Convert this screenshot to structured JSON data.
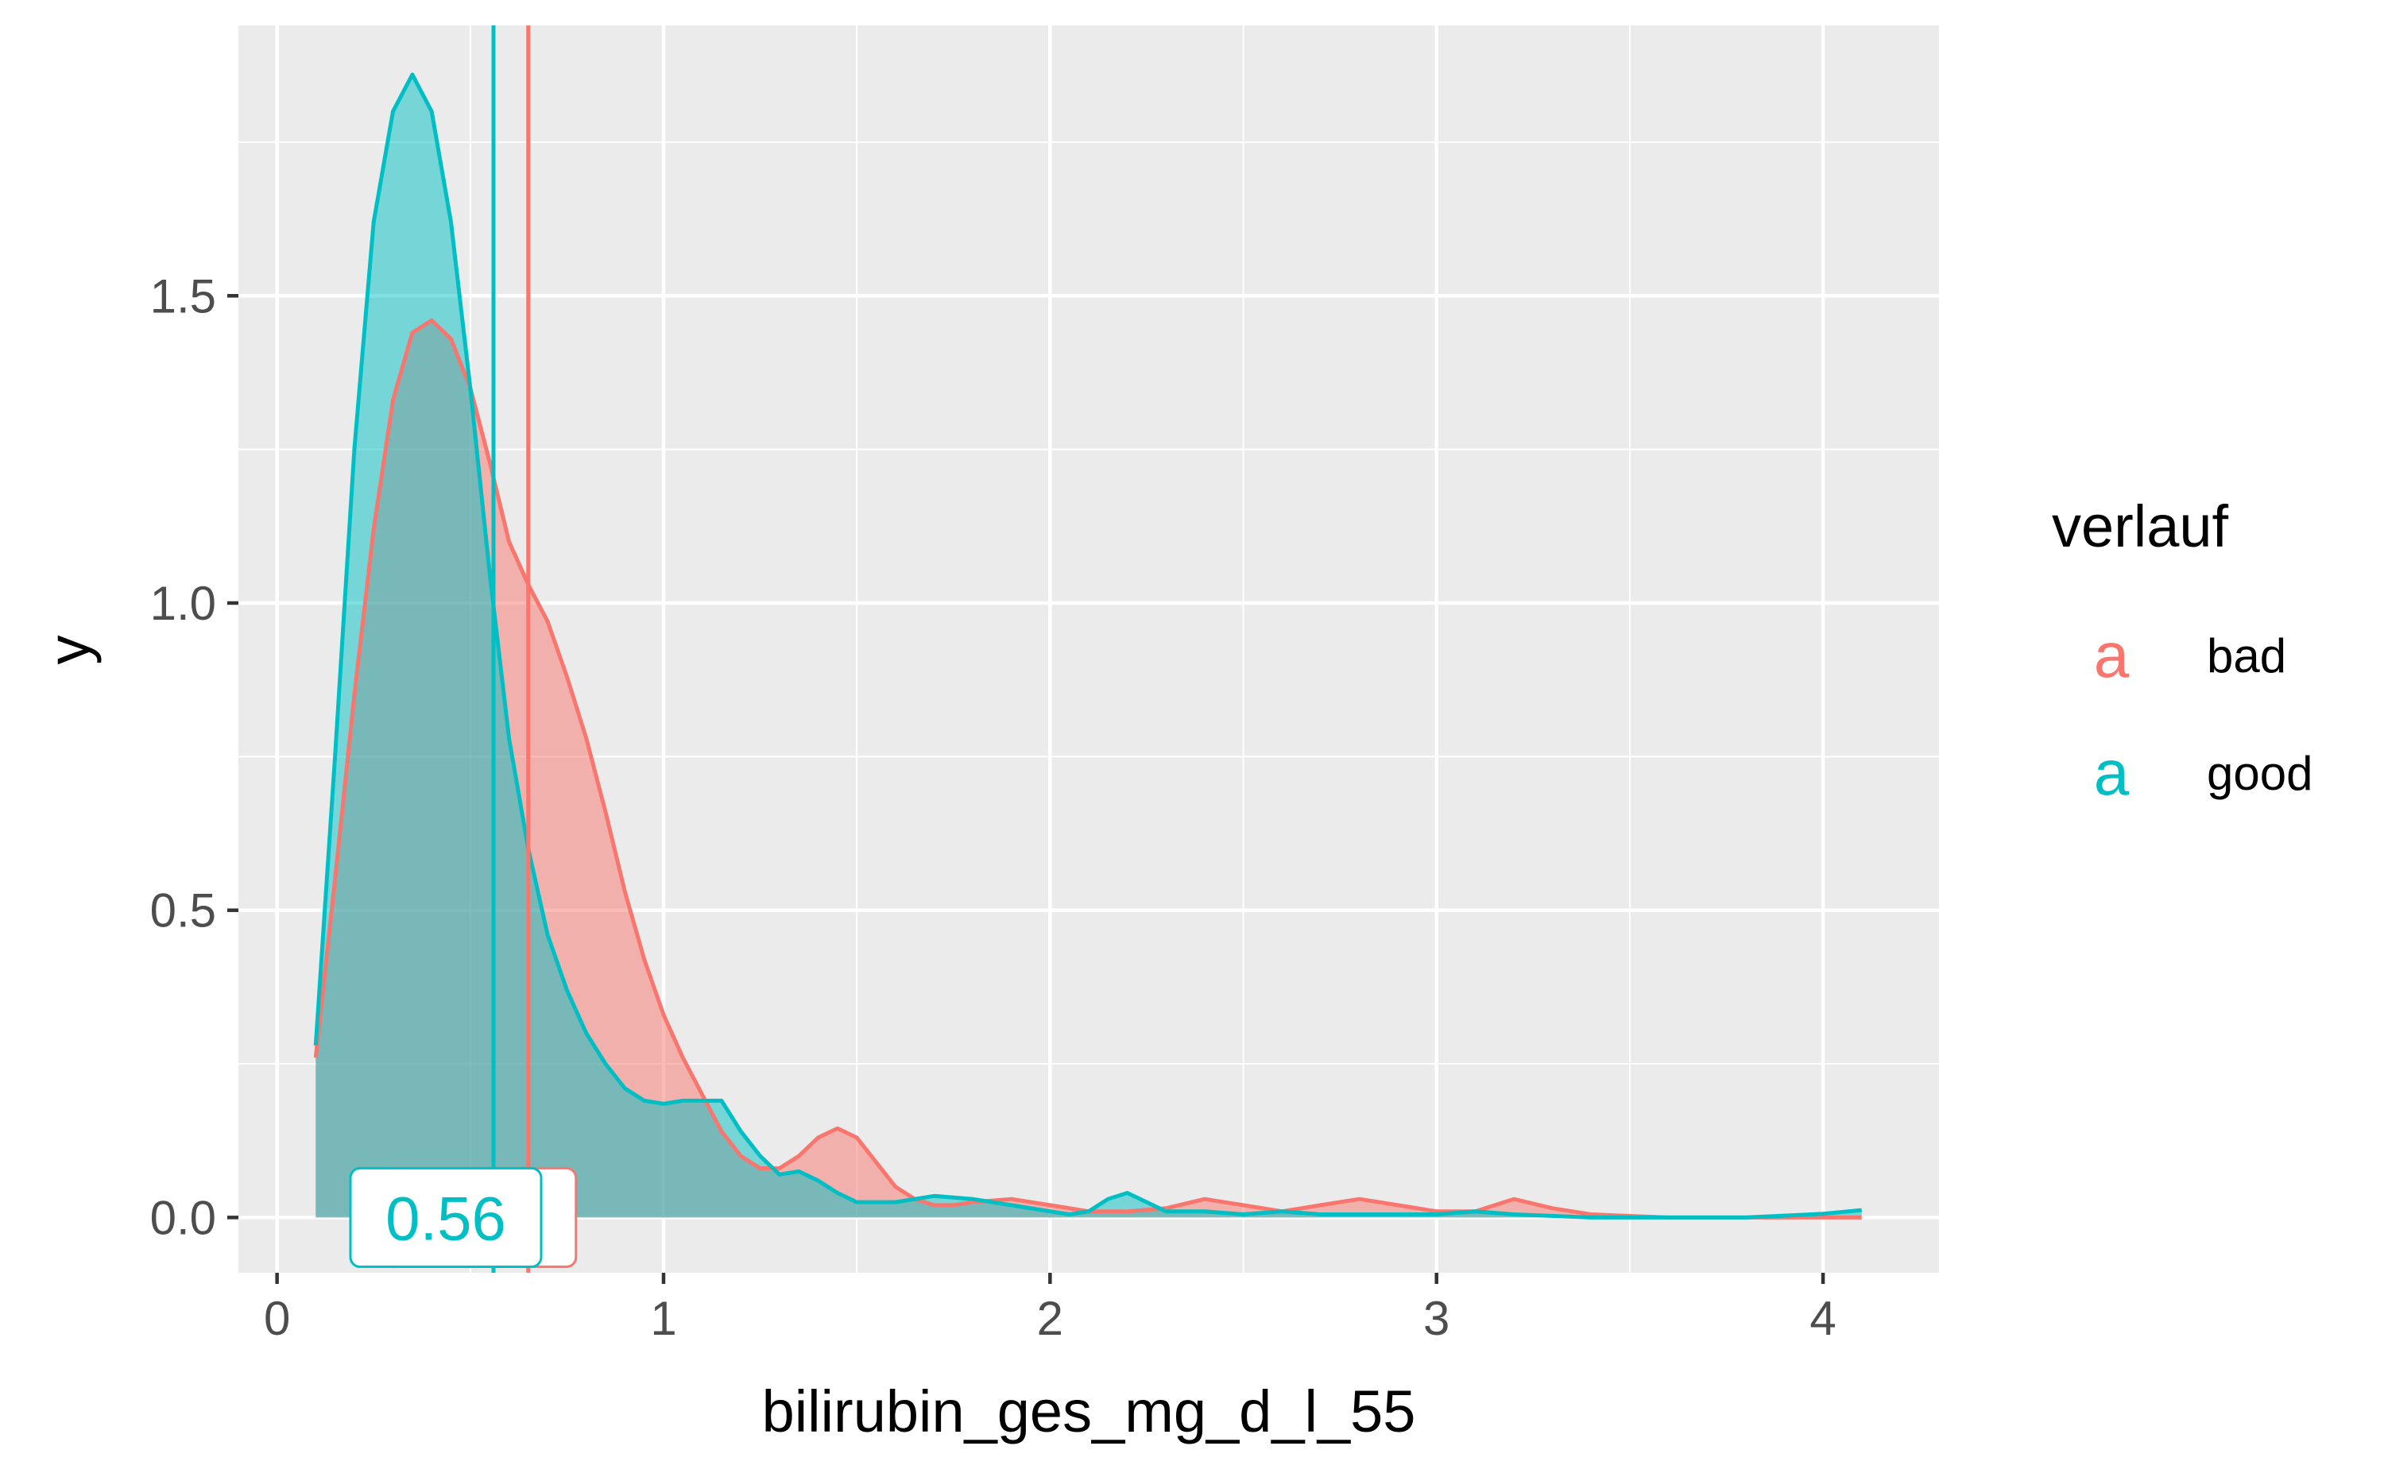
{
  "chart_data": {
    "type": "area",
    "xlabel": "bilirubin_ges_mg_d_l_55",
    "ylabel": "y",
    "xlim": [
      -0.1,
      4.3
    ],
    "ylim": [
      -0.09,
      1.94
    ],
    "x_ticks": [
      0,
      1,
      2,
      3,
      4
    ],
    "x_tick_labels": [
      "0",
      "1",
      "2",
      "3",
      "4"
    ],
    "y_ticks": [
      0.0,
      0.5,
      1.0,
      1.5
    ],
    "y_tick_labels": [
      "0.0",
      "0.5",
      "1.0",
      "1.5"
    ],
    "grid": true,
    "legend": {
      "title": "verlauf",
      "position": "right",
      "key_glyph": "a",
      "entries": [
        {
          "label": "bad",
          "color": "#F8766D"
        },
        {
          "label": "good",
          "color": "#00BFC4"
        }
      ]
    },
    "series": [
      {
        "name": "bad",
        "color": "#F8766D",
        "median": 0.65,
        "median_label": "0.65",
        "x": [
          0.1,
          0.15,
          0.2,
          0.25,
          0.3,
          0.35,
          0.4,
          0.45,
          0.5,
          0.55,
          0.6,
          0.65,
          0.7,
          0.75,
          0.8,
          0.85,
          0.9,
          0.95,
          1.0,
          1.05,
          1.1,
          1.15,
          1.2,
          1.25,
          1.3,
          1.35,
          1.4,
          1.45,
          1.5,
          1.55,
          1.6,
          1.65,
          1.7,
          1.75,
          1.8,
          1.9,
          2.0,
          2.1,
          2.2,
          2.3,
          2.4,
          2.5,
          2.6,
          2.7,
          2.8,
          2.9,
          3.0,
          3.1,
          3.2,
          3.3,
          3.4,
          3.6,
          3.8,
          4.0,
          4.1
        ],
        "y": [
          0.26,
          0.55,
          0.85,
          1.12,
          1.33,
          1.44,
          1.46,
          1.43,
          1.35,
          1.23,
          1.1,
          1.03,
          0.97,
          0.88,
          0.78,
          0.66,
          0.53,
          0.42,
          0.33,
          0.26,
          0.2,
          0.14,
          0.1,
          0.08,
          0.08,
          0.1,
          0.13,
          0.145,
          0.13,
          0.09,
          0.05,
          0.03,
          0.02,
          0.02,
          0.025,
          0.03,
          0.02,
          0.01,
          0.01,
          0.015,
          0.03,
          0.02,
          0.01,
          0.02,
          0.03,
          0.02,
          0.01,
          0.01,
          0.03,
          0.015,
          0.005,
          0.0,
          0.0,
          0.0,
          0.0
        ]
      },
      {
        "name": "good",
        "color": "#00BFC4",
        "median": 0.56,
        "median_label": "0.56",
        "x": [
          0.1,
          0.15,
          0.2,
          0.25,
          0.3,
          0.35,
          0.4,
          0.45,
          0.5,
          0.55,
          0.6,
          0.65,
          0.7,
          0.75,
          0.8,
          0.85,
          0.9,
          0.95,
          1.0,
          1.05,
          1.1,
          1.15,
          1.2,
          1.25,
          1.3,
          1.35,
          1.4,
          1.45,
          1.5,
          1.6,
          1.7,
          1.8,
          1.9,
          2.0,
          2.05,
          2.1,
          2.15,
          2.2,
          2.25,
          2.3,
          2.4,
          2.5,
          2.6,
          2.7,
          2.8,
          2.9,
          3.0,
          3.1,
          3.2,
          3.4,
          3.6,
          3.8,
          3.9,
          4.0,
          4.1
        ],
        "y": [
          0.28,
          0.75,
          1.25,
          1.62,
          1.8,
          1.86,
          1.8,
          1.62,
          1.35,
          1.05,
          0.78,
          0.6,
          0.46,
          0.37,
          0.3,
          0.25,
          0.21,
          0.19,
          0.185,
          0.19,
          0.19,
          0.19,
          0.14,
          0.1,
          0.07,
          0.075,
          0.06,
          0.04,
          0.025,
          0.025,
          0.035,
          0.03,
          0.02,
          0.01,
          0.005,
          0.01,
          0.03,
          0.04,
          0.025,
          0.01,
          0.01,
          0.005,
          0.01,
          0.005,
          0.005,
          0.005,
          0.005,
          0.01,
          0.005,
          0.0,
          0.0,
          0.0,
          0.003,
          0.006,
          0.012
        ]
      }
    ]
  }
}
